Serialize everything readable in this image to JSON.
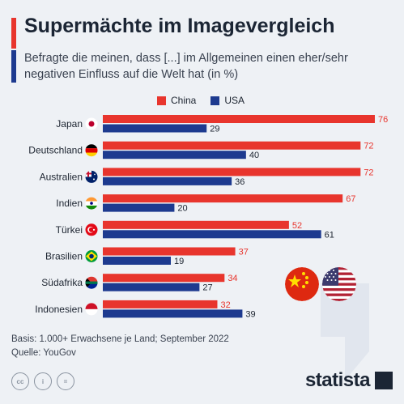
{
  "header": {
    "title": "Supermächte im Imagevergleich",
    "subtitle": "Befragte die meinen, dass [...] im Allgemeinen einen eher/sehr negativen Einfluss auf die Welt hat (in %)"
  },
  "legend": {
    "china_label": "China",
    "usa_label": "USA"
  },
  "colors": {
    "china": "#e8352d",
    "usa": "#1d3a8f"
  },
  "chart_data": {
    "type": "bar",
    "orientation": "horizontal",
    "categories": [
      "Japan",
      "Deutschland",
      "Australien",
      "Indien",
      "Türkei",
      "Brasilien",
      "Südafrika",
      "Indonesien"
    ],
    "series": [
      {
        "name": "China",
        "values": [
          76,
          72,
          72,
          67,
          52,
          37,
          34,
          32
        ]
      },
      {
        "name": "USA",
        "values": [
          29,
          40,
          36,
          20,
          61,
          19,
          27,
          39
        ]
      }
    ],
    "xlim": [
      0,
      76
    ],
    "legend_position": "top",
    "grid": false
  },
  "footer": {
    "basis": "Basis: 1.000+ Erwachsene je Land; September 2022",
    "source": "Quelle: YouGov"
  },
  "icons": {
    "cc": "cc-icon",
    "by": "by-icon",
    "nd": "nd-icon"
  },
  "cc_labels": {
    "cc": "cc",
    "by": "i",
    "nd": "="
  },
  "logo": {
    "text": "statista"
  }
}
